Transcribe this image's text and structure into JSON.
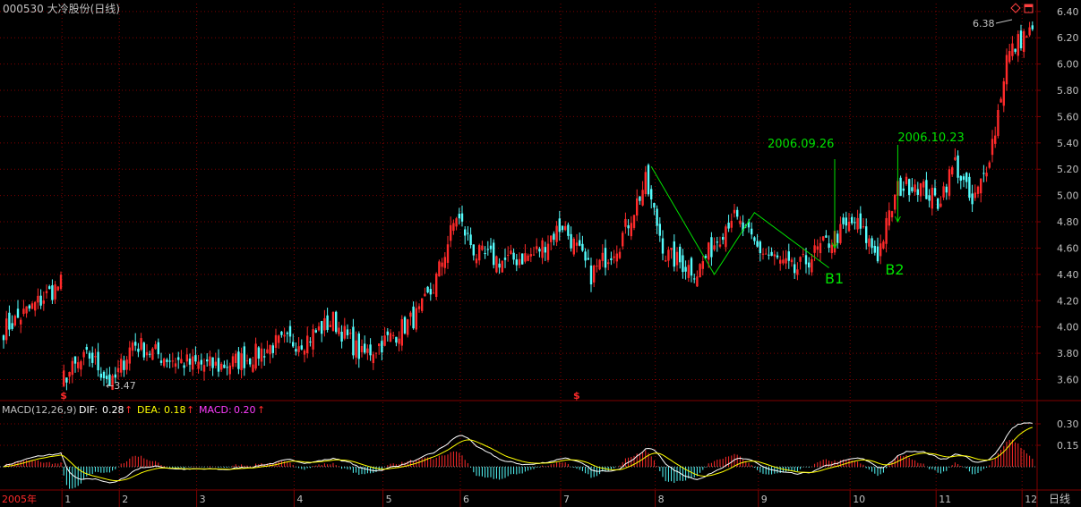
{
  "header": {
    "title": "000530 大冷股份(日线)",
    "icon_color_diamond": "#ff4040",
    "icon_color_window": "#ff4040"
  },
  "colors": {
    "up": "#ff2a2a",
    "down": "#54fcfc",
    "grid": "#800000",
    "axis_text": "#c0c0c0",
    "annotation": "#00e000",
    "dif": "#ffffff",
    "dea": "#ffff00",
    "macd": "#ff3cff"
  },
  "macd_header": {
    "name": "MACD(12,26,9)",
    "dif_label": "DIF:",
    "dif_value": "0.28",
    "dea_label": "DEA:",
    "dea_value": "0.18",
    "macd_label": "MACD:",
    "macd_value": "0.20",
    "arrow": "↑"
  },
  "chart_data": [
    {
      "type": "candlestick",
      "title": "000530 大冷股份(日线)",
      "ylim": [
        3.44,
        6.46
      ],
      "yticks": [
        "3.60",
        "3.80",
        "4.00",
        "4.20",
        "4.40",
        "4.60",
        "4.80",
        "5.00",
        "5.20",
        "5.40",
        "5.60",
        "5.80",
        "6.00",
        "6.20",
        "6.40"
      ],
      "x_labels": [
        "2005年",
        "1",
        "2",
        "3",
        "4",
        "5",
        "6",
        "7",
        "8",
        "9",
        "10",
        "11",
        "12"
      ],
      "period_label": "日线",
      "price_path": [
        {
          "i": 0,
          "p": 3.98
        },
        {
          "i": 10,
          "p": 4.15
        },
        {
          "i": 20,
          "p": 4.33
        },
        {
          "i": 21,
          "p": 3.62
        },
        {
          "i": 30,
          "p": 3.78
        },
        {
          "i": 38,
          "p": 3.56
        },
        {
          "i": 45,
          "p": 3.88
        },
        {
          "i": 55,
          "p": 3.78
        },
        {
          "i": 65,
          "p": 3.72
        },
        {
          "i": 75,
          "p": 3.7
        },
        {
          "i": 85,
          "p": 3.76
        },
        {
          "i": 95,
          "p": 3.87
        },
        {
          "i": 105,
          "p": 3.9
        },
        {
          "i": 115,
          "p": 4.05
        },
        {
          "i": 125,
          "p": 3.78
        },
        {
          "i": 135,
          "p": 3.92
        },
        {
          "i": 145,
          "p": 4.1
        },
        {
          "i": 150,
          "p": 4.3
        },
        {
          "i": 158,
          "p": 4.85
        },
        {
          "i": 165,
          "p": 4.55
        },
        {
          "i": 175,
          "p": 4.5
        },
        {
          "i": 185,
          "p": 4.55
        },
        {
          "i": 195,
          "p": 4.78
        },
        {
          "i": 205,
          "p": 4.4
        },
        {
          "i": 215,
          "p": 4.65
        },
        {
          "i": 224,
          "p": 5.1
        },
        {
          "i": 231,
          "p": 4.55
        },
        {
          "i": 242,
          "p": 4.42
        },
        {
          "i": 254,
          "p": 4.85
        },
        {
          "i": 263,
          "p": 4.6
        },
        {
          "i": 276,
          "p": 4.42
        },
        {
          "i": 285,
          "p": 4.6
        },
        {
          "i": 297,
          "p": 4.8
        },
        {
          "i": 305,
          "p": 4.55
        },
        {
          "i": 312,
          "p": 5.05
        },
        {
          "i": 318,
          "p": 5.1
        },
        {
          "i": 326,
          "p": 4.95
        },
        {
          "i": 332,
          "p": 5.25
        },
        {
          "i": 338,
          "p": 4.92
        },
        {
          "i": 342,
          "p": 5.15
        },
        {
          "i": 346,
          "p": 5.5
        },
        {
          "i": 350,
          "p": 6.05
        },
        {
          "i": 356,
          "p": 6.22
        }
      ],
      "annotations": [
        {
          "text": "2006.09.26",
          "kind": "date-arrow"
        },
        {
          "text": "2006.10.23",
          "kind": "date-arrow"
        },
        {
          "text": "B1",
          "kind": "buy-point"
        },
        {
          "text": "B2",
          "kind": "buy-point"
        },
        {
          "text": "6.38",
          "kind": "high-marker"
        },
        {
          "text": "3.47",
          "kind": "low-marker"
        },
        {
          "text": "$",
          "kind": "event-marker"
        },
        {
          "text": "$",
          "kind": "event-marker"
        }
      ],
      "zigzag": [
        {
          "i": 226,
          "p": 5.22
        },
        {
          "i": 248,
          "p": 4.4
        },
        {
          "i": 262,
          "p": 4.87
        },
        {
          "i": 288,
          "p": 4.45
        }
      ]
    },
    {
      "type": "line",
      "title": "MACD(12,26,9)",
      "ylim": [
        -0.15,
        0.4
      ],
      "yticks": [
        "0.15",
        "0.30"
      ],
      "series": [
        {
          "name": "DIF",
          "value": 0.28
        },
        {
          "name": "DEA",
          "value": 0.18
        },
        {
          "name": "MACD",
          "value": 0.2
        }
      ]
    }
  ]
}
